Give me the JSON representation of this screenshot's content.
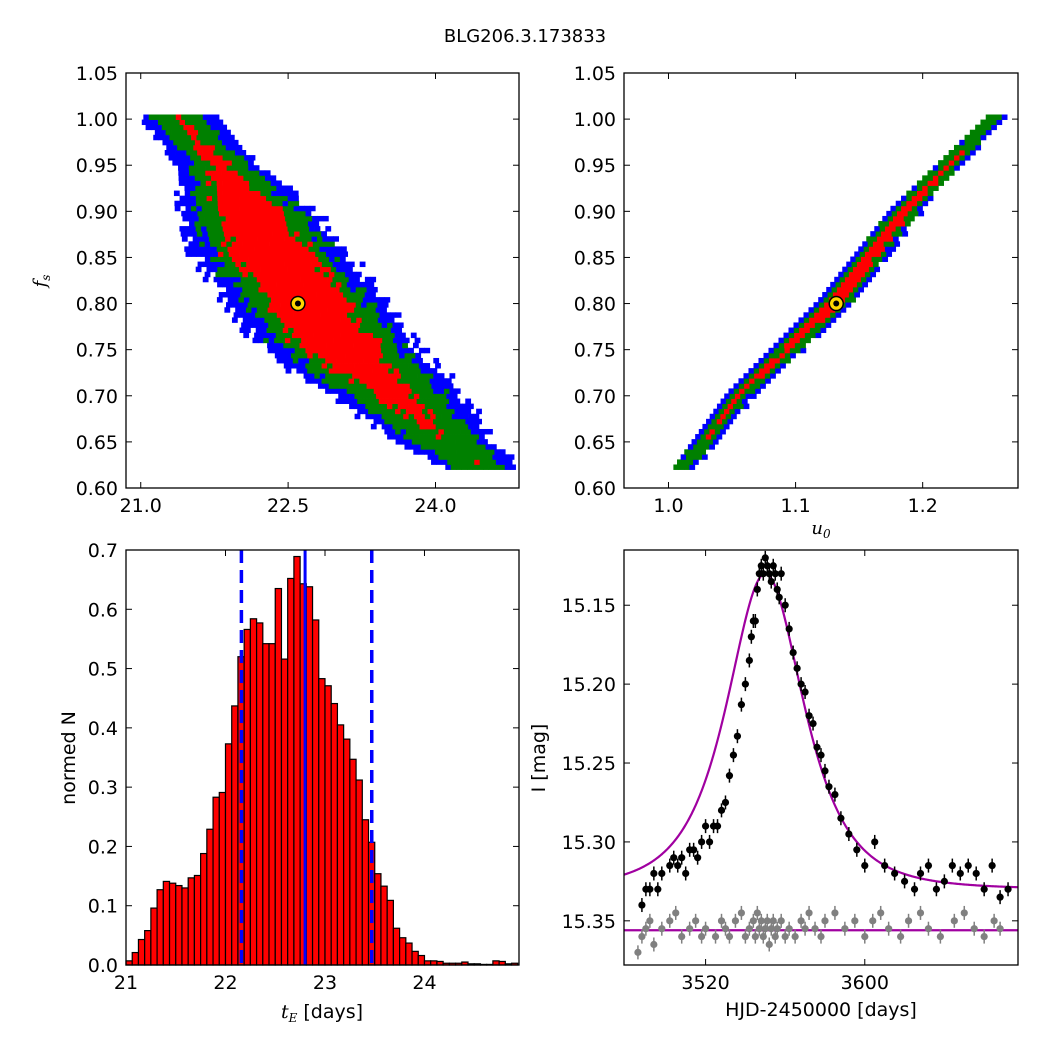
{
  "figure_title": "BLG206.3.173833",
  "chart_data": [
    {
      "type": "heatmap",
      "ylabel": "f_s",
      "xlabel": "",
      "xlim": [
        20.85,
        24.85
      ],
      "ylim": [
        0.6,
        1.05
      ],
      "xticks": [
        "21.0",
        "22.5",
        "24.0"
      ],
      "yticks": [
        "0.60",
        "0.65",
        "0.70",
        "0.75",
        "0.80",
        "0.85",
        "0.90",
        "0.95",
        "1.00",
        "1.05"
      ],
      "legend": "none",
      "colors": {
        "outer": "#0000ff",
        "middle": "#008000",
        "inner": "#ff0000",
        "best": "#000000"
      },
      "best_fit": {
        "x": 22.6,
        "y": 0.8
      },
      "ridge": [
        {
          "y": 1.0,
          "center": 21.35,
          "inner": 0.05,
          "middle": 0.26,
          "outer": 0.38
        },
        {
          "y": 0.95,
          "center": 21.75,
          "inner": 0.08,
          "middle": 0.28,
          "outer": 0.42
        },
        {
          "y": 0.9,
          "center": 22.05,
          "inner": 0.3,
          "middle": 0.52,
          "outer": 0.66
        },
        {
          "y": 0.85,
          "center": 22.3,
          "inner": 0.42,
          "middle": 0.62,
          "outer": 0.78
        },
        {
          "y": 0.8,
          "center": 22.65,
          "inner": 0.4,
          "middle": 0.62,
          "outer": 0.8
        },
        {
          "y": 0.75,
          "center": 23.0,
          "inner": 0.4,
          "middle": 0.62,
          "outer": 0.8
        },
        {
          "y": 0.7,
          "center": 23.55,
          "inner": 0.2,
          "middle": 0.5,
          "outer": 0.7
        },
        {
          "y": 0.65,
          "center": 24.05,
          "inner": 0.0,
          "middle": 0.32,
          "outer": 0.48
        },
        {
          "y": 0.62,
          "center": 24.45,
          "inner": 0.0,
          "middle": 0.25,
          "outer": 0.4
        }
      ]
    },
    {
      "type": "heatmap",
      "xlabel": "u_0",
      "ylabel": "",
      "xlim": [
        0.965,
        1.275
      ],
      "ylim": [
        0.6,
        1.05
      ],
      "xticks": [
        "1.0",
        "1.1",
        "1.2"
      ],
      "yticks": [
        "0.60",
        "0.65",
        "0.70",
        "0.75",
        "0.80",
        "0.85",
        "0.90",
        "0.95",
        "1.00",
        "1.05"
      ],
      "legend": "none",
      "colors": {
        "outer": "#0000ff",
        "middle": "#008000",
        "inner": "#ff0000",
        "best": "#000000"
      },
      "best_fit": {
        "x": 1.132,
        "y": 0.8
      },
      "ridge": [
        {
          "y": 0.62,
          "center": 1.01,
          "inner": 0.0,
          "middle": 0.006,
          "outer": 0.009
        },
        {
          "y": 0.7,
          "center": 1.055,
          "inner": 0.002,
          "middle": 0.008,
          "outer": 0.012
        },
        {
          "y": 0.8,
          "center": 1.13,
          "inner": 0.006,
          "middle": 0.011,
          "outer": 0.015
        },
        {
          "y": 0.9,
          "center": 1.185,
          "inner": 0.004,
          "middle": 0.01,
          "outer": 0.013
        },
        {
          "y": 1.0,
          "center": 1.255,
          "inner": 0.0,
          "middle": 0.006,
          "outer": 0.008
        }
      ]
    },
    {
      "type": "bar",
      "xlabel": "t_E [days]",
      "ylabel": "normed N",
      "xlim": [
        21.0,
        24.95
      ],
      "ylim": [
        0.0,
        0.7
      ],
      "xticks": [
        "21",
        "22",
        "23",
        "24"
      ],
      "yticks": [
        "0.0",
        "0.1",
        "0.2",
        "0.3",
        "0.4",
        "0.5",
        "0.6",
        "0.7"
      ],
      "legend": "none",
      "bar_color": "#ff0000",
      "bin_start": 21.0,
      "bin_width": 0.0625,
      "values": [
        0.007,
        0.021,
        0.043,
        0.058,
        0.096,
        0.127,
        0.141,
        0.138,
        0.134,
        0.13,
        0.147,
        0.151,
        0.188,
        0.229,
        0.283,
        0.291,
        0.373,
        0.437,
        0.52,
        0.566,
        0.584,
        0.577,
        0.542,
        0.542,
        0.635,
        0.516,
        0.652,
        0.689,
        0.643,
        0.638,
        0.582,
        0.483,
        0.471,
        0.441,
        0.405,
        0.381,
        0.347,
        0.312,
        0.245,
        0.207,
        0.154,
        0.133,
        0.109,
        0.062,
        0.046,
        0.037,
        0.023,
        0.016,
        0.007,
        0.007,
        0.006,
        0.003,
        0.003,
        0.003,
        0.005,
        0.002,
        0.002,
        0.001,
        0.001,
        0.007,
        0.006,
        0.002,
        0.003
      ],
      "median": 22.8,
      "lower": 22.16,
      "upper": 23.47,
      "line_color": "#0000ff"
    },
    {
      "type": "scatter",
      "xlabel": "HJD-2450000 [days]",
      "ylabel": "I [mag]",
      "xlim": [
        3479,
        3677
      ],
      "ylim": [
        15.378,
        15.115
      ],
      "xticks": [
        "3520",
        "3600"
      ],
      "yticks": [
        "15.15",
        "15.20",
        "15.25",
        "15.30",
        "15.35"
      ],
      "legend": "none",
      "model_color": "#a000a0",
      "model": {
        "t0": 3550,
        "tE": 22.8,
        "u0": 1.132,
        "I_base": 15.33,
        "fs": 0.8
      },
      "residual_level": 15.356,
      "series": [
        {
          "color": "#000000",
          "x": [
            3488,
            3490,
            3492,
            3494,
            3496,
            3498,
            3502,
            3504,
            3506,
            3508,
            3510,
            3512,
            3514,
            3516,
            3518,
            3520,
            3522,
            3524,
            3526,
            3528,
            3530,
            3532,
            3534,
            3536,
            3538,
            3540,
            3542,
            3543,
            3544,
            3545,
            3546,
            3547,
            3548,
            3549,
            3550,
            3551,
            3552,
            3553,
            3554,
            3555,
            3556,
            3557,
            3558,
            3560,
            3562,
            3564,
            3566,
            3568,
            3570,
            3572,
            3574,
            3576,
            3578,
            3580,
            3582,
            3585,
            3588,
            3592,
            3596,
            3600,
            3605,
            3610,
            3615,
            3620,
            3625,
            3628,
            3632,
            3636,
            3640,
            3644,
            3648,
            3652,
            3656,
            3660,
            3664,
            3668,
            3672
          ],
          "y": [
            15.34,
            15.33,
            15.33,
            15.32,
            15.33,
            15.32,
            15.315,
            15.31,
            15.315,
            15.31,
            15.32,
            15.305,
            15.305,
            15.31,
            15.3,
            15.29,
            15.3,
            15.29,
            15.29,
            15.28,
            15.275,
            15.258,
            15.245,
            15.233,
            15.213,
            15.2,
            15.185,
            15.17,
            15.16,
            15.16,
            15.14,
            15.13,
            15.125,
            15.13,
            15.12,
            15.125,
            15.13,
            15.135,
            15.125,
            15.13,
            15.14,
            15.145,
            15.13,
            15.15,
            15.165,
            15.18,
            15.19,
            15.2,
            15.205,
            15.22,
            15.225,
            15.24,
            15.245,
            15.255,
            15.265,
            15.27,
            15.285,
            15.295,
            15.305,
            15.315,
            15.3,
            15.315,
            15.32,
            15.325,
            15.33,
            15.32,
            15.315,
            15.33,
            15.325,
            15.315,
            15.32,
            15.315,
            15.32,
            15.33,
            15.315,
            15.335,
            15.33
          ]
        },
        {
          "color": "#808080",
          "x": [
            3486,
            3488,
            3490,
            3492,
            3494,
            3498,
            3502,
            3505,
            3508,
            3512,
            3515,
            3518,
            3520,
            3525,
            3528,
            3530,
            3532,
            3535,
            3538,
            3540,
            3542,
            3544,
            3545,
            3546,
            3547,
            3548,
            3549,
            3550,
            3551,
            3552,
            3553,
            3554,
            3555,
            3556,
            3558,
            3560,
            3562,
            3565,
            3568,
            3570,
            3572,
            3575,
            3578,
            3580,
            3585,
            3590,
            3595,
            3600,
            3604,
            3608,
            3612,
            3618,
            3622,
            3628,
            3632,
            3638,
            3645,
            3650,
            3655,
            3660,
            3665,
            3668
          ],
          "y": [
            15.37,
            15.36,
            15.355,
            15.35,
            15.365,
            15.355,
            15.35,
            15.345,
            15.36,
            15.355,
            15.35,
            15.36,
            15.355,
            15.36,
            15.35,
            15.355,
            15.36,
            15.35,
            15.345,
            15.36,
            15.355,
            15.35,
            15.36,
            15.345,
            15.355,
            15.35,
            15.36,
            15.355,
            15.35,
            15.365,
            15.355,
            15.35,
            15.36,
            15.355,
            15.35,
            15.36,
            15.355,
            15.36,
            15.35,
            15.355,
            15.345,
            15.355,
            15.36,
            15.35,
            15.345,
            15.355,
            15.35,
            15.36,
            15.35,
            15.345,
            15.355,
            15.36,
            15.35,
            15.345,
            15.355,
            15.36,
            15.35,
            15.345,
            15.355,
            15.36,
            15.35,
            15.355
          ]
        }
      ]
    }
  ]
}
